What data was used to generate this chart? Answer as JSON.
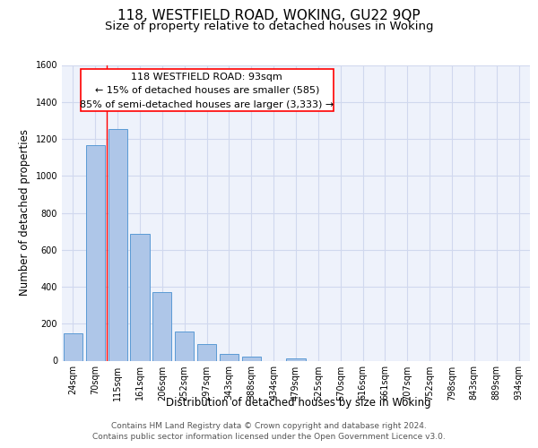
{
  "title": "118, WESTFIELD ROAD, WOKING, GU22 9QP",
  "subtitle": "Size of property relative to detached houses in Woking",
  "xlabel": "Distribution of detached houses by size in Woking",
  "ylabel": "Number of detached properties",
  "bar_labels": [
    "24sqm",
    "70sqm",
    "115sqm",
    "161sqm",
    "206sqm",
    "252sqm",
    "297sqm",
    "343sqm",
    "388sqm",
    "434sqm",
    "479sqm",
    "525sqm",
    "570sqm",
    "616sqm",
    "661sqm",
    "707sqm",
    "752sqm",
    "798sqm",
    "843sqm",
    "889sqm",
    "934sqm"
  ],
  "bar_values": [
    148,
    1165,
    1252,
    685,
    370,
    160,
    90,
    35,
    22,
    0,
    10,
    0,
    0,
    0,
    0,
    0,
    0,
    0,
    0,
    0,
    0
  ],
  "bar_color": "#aec6e8",
  "bar_edge_color": "#5b9bd5",
  "property_line_label": "118 WESTFIELD ROAD: 93sqm",
  "annotation_line1": "← 15% of detached houses are smaller (585)",
  "annotation_line2": "85% of semi-detached houses are larger (3,333) →",
  "ylim": [
    0,
    1600
  ],
  "yticks": [
    0,
    200,
    400,
    600,
    800,
    1000,
    1200,
    1400,
    1600
  ],
  "footer_line1": "Contains HM Land Registry data © Crown copyright and database right 2024.",
  "footer_line2": "Contains public sector information licensed under the Open Government Licence v3.0.",
  "background_color": "#ffffff",
  "plot_bg_color": "#eef2fb",
  "grid_color": "#d0d8ee",
  "title_fontsize": 11,
  "subtitle_fontsize": 9.5,
  "axis_label_fontsize": 8.5,
  "tick_fontsize": 7,
  "footer_fontsize": 6.5,
  "annot_fontsize": 8
}
